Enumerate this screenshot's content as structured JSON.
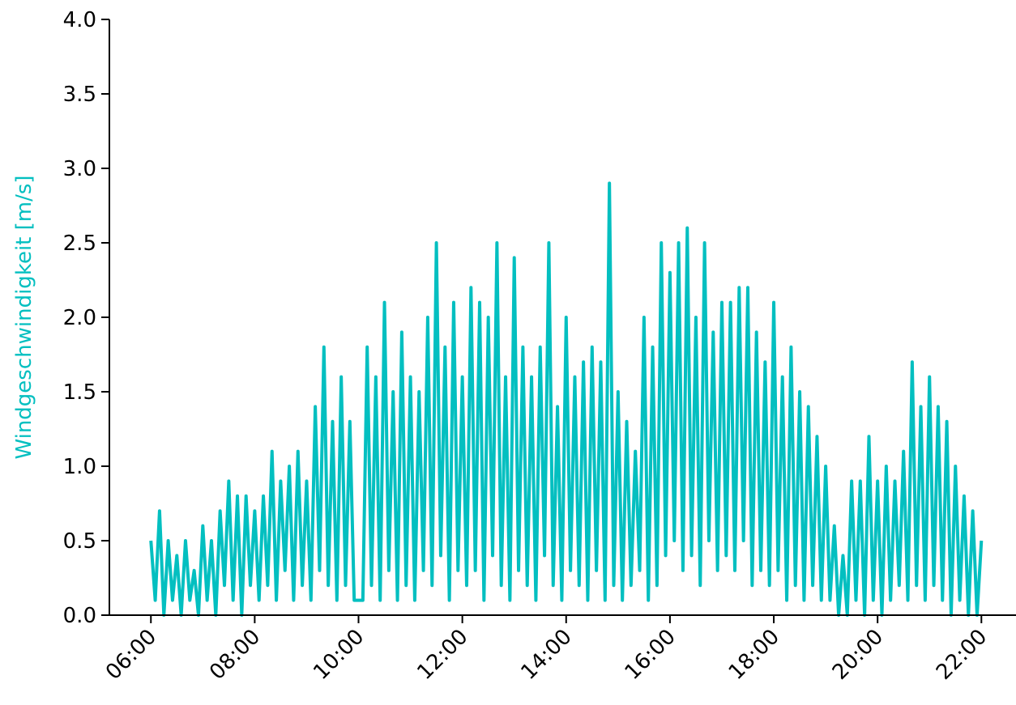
{
  "chart_data": {
    "type": "line",
    "y_label": "Windgeschwindigkeit [m/s]",
    "x": [
      "06:00",
      "06:05",
      "06:10",
      "06:15",
      "06:20",
      "06:25",
      "06:30",
      "06:35",
      "06:40",
      "06:45",
      "06:50",
      "06:55",
      "07:00",
      "07:05",
      "07:10",
      "07:15",
      "07:20",
      "07:25",
      "07:30",
      "07:35",
      "07:40",
      "07:45",
      "07:50",
      "07:55",
      "08:00",
      "08:05",
      "08:10",
      "08:15",
      "08:20",
      "08:25",
      "08:30",
      "08:35",
      "08:40",
      "08:45",
      "08:50",
      "08:55",
      "09:00",
      "09:05",
      "09:10",
      "09:15",
      "09:20",
      "09:25",
      "09:30",
      "09:35",
      "09:40",
      "09:45",
      "09:50",
      "09:55",
      "10:00",
      "10:05",
      "10:10",
      "10:15",
      "10:20",
      "10:25",
      "10:30",
      "10:35",
      "10:40",
      "10:45",
      "10:50",
      "10:55",
      "11:00",
      "11:05",
      "11:10",
      "11:15",
      "11:20",
      "11:25",
      "11:30",
      "11:35",
      "11:40",
      "11:45",
      "11:50",
      "11:55",
      "12:00",
      "12:05",
      "12:10",
      "12:15",
      "12:20",
      "12:25",
      "12:30",
      "12:35",
      "12:40",
      "12:45",
      "12:50",
      "12:55",
      "13:00",
      "13:05",
      "13:10",
      "13:15",
      "13:20",
      "13:25",
      "13:30",
      "13:35",
      "13:40",
      "13:45",
      "13:50",
      "13:55",
      "14:00",
      "14:05",
      "14:10",
      "14:15",
      "14:20",
      "14:25",
      "14:30",
      "14:35",
      "14:40",
      "14:45",
      "14:50",
      "14:55",
      "15:00",
      "15:05",
      "15:10",
      "15:15",
      "15:20",
      "15:25",
      "15:30",
      "15:35",
      "15:40",
      "15:45",
      "15:50",
      "15:55",
      "16:00",
      "16:05",
      "16:10",
      "16:15",
      "16:20",
      "16:25",
      "16:30",
      "16:35",
      "16:40",
      "16:45",
      "16:50",
      "16:55",
      "17:00",
      "17:05",
      "17:10",
      "17:15",
      "17:20",
      "17:25",
      "17:30",
      "17:35",
      "17:40",
      "17:45",
      "17:50",
      "17:55",
      "18:00",
      "18:05",
      "18:10",
      "18:15",
      "18:20",
      "18:25",
      "18:30",
      "18:35",
      "18:40",
      "18:45",
      "18:50",
      "18:55",
      "19:00",
      "19:05",
      "19:10",
      "19:15",
      "19:20",
      "19:25",
      "19:30",
      "19:35",
      "19:40",
      "19:45",
      "19:50",
      "19:55",
      "20:00",
      "20:05",
      "20:10",
      "20:15",
      "20:20",
      "20:25",
      "20:30",
      "20:35",
      "20:40",
      "20:45",
      "20:50",
      "20:55",
      "21:00",
      "21:05",
      "21:10",
      "21:15",
      "21:20",
      "21:25",
      "21:30",
      "21:35",
      "21:40",
      "21:45",
      "21:50",
      "21:55",
      "22:00"
    ],
    "series": [
      {
        "name": "Windgeschwindigkeit",
        "color": "#03bfc0",
        "values": [
          0.5,
          0.1,
          0.7,
          0.0,
          0.5,
          0.1,
          0.4,
          0.0,
          0.5,
          0.1,
          0.3,
          0.0,
          0.6,
          0.1,
          0.5,
          0.0,
          0.7,
          0.2,
          0.9,
          0.1,
          0.8,
          0.0,
          0.8,
          0.2,
          0.7,
          0.1,
          0.8,
          0.2,
          1.1,
          0.1,
          0.9,
          0.3,
          1.0,
          0.1,
          1.1,
          0.2,
          0.9,
          0.1,
          1.4,
          0.3,
          1.8,
          0.2,
          1.3,
          0.1,
          1.6,
          0.2,
          1.3,
          0.1,
          0.1,
          0.1,
          1.8,
          0.2,
          1.6,
          0.1,
          2.1,
          0.3,
          1.5,
          0.1,
          1.9,
          0.2,
          1.6,
          0.1,
          1.5,
          0.3,
          2.0,
          0.2,
          2.5,
          0.4,
          1.8,
          0.1,
          2.1,
          0.3,
          1.6,
          0.2,
          2.2,
          0.3,
          2.1,
          0.1,
          2.0,
          0.4,
          2.5,
          0.2,
          1.6,
          0.1,
          2.4,
          0.3,
          1.8,
          0.2,
          1.6,
          0.1,
          1.8,
          0.4,
          2.5,
          0.2,
          1.4,
          0.1,
          2.0,
          0.3,
          1.6,
          0.2,
          1.7,
          0.1,
          1.8,
          0.3,
          1.7,
          0.1,
          2.9,
          0.2,
          1.5,
          0.1,
          1.3,
          0.2,
          1.1,
          0.3,
          2.0,
          0.1,
          1.8,
          0.2,
          2.5,
          0.4,
          2.3,
          0.5,
          2.5,
          0.3,
          2.6,
          0.4,
          2.0,
          0.2,
          2.5,
          0.5,
          1.9,
          0.3,
          2.1,
          0.4,
          2.1,
          0.3,
          2.2,
          0.5,
          2.2,
          0.2,
          1.9,
          0.3,
          1.7,
          0.2,
          2.1,
          0.3,
          1.6,
          0.1,
          1.8,
          0.2,
          1.5,
          0.1,
          1.4,
          0.2,
          1.2,
          0.1,
          1.0,
          0.1,
          0.6,
          0.0,
          0.4,
          0.0,
          0.9,
          0.1,
          0.9,
          0.0,
          1.2,
          0.1,
          0.9,
          0.0,
          1.0,
          0.1,
          0.9,
          0.2,
          1.1,
          0.1,
          1.7,
          0.2,
          1.4,
          0.1,
          1.6,
          0.2,
          1.4,
          0.1,
          1.3,
          0.0,
          1.0,
          0.1,
          0.8,
          0.0,
          0.7,
          0.0,
          0.5
        ]
      }
    ],
    "xlim": [
      "05:12",
      "22:40"
    ],
    "xticks": [
      "06:00",
      "08:00",
      "10:00",
      "12:00",
      "14:00",
      "16:00",
      "18:00",
      "20:00",
      "22:00"
    ],
    "ylim": [
      0,
      4
    ],
    "yticks": [
      {
        "value": 0,
        "label": "0.0"
      },
      {
        "value": 0.5,
        "label": "0.5"
      },
      {
        "value": 1,
        "label": "1.0"
      },
      {
        "value": 1.5,
        "label": "1.5"
      },
      {
        "value": 2,
        "label": "2.0"
      },
      {
        "value": 2.5,
        "label": "2.5"
      },
      {
        "value": 3,
        "label": "3.0"
      },
      {
        "value": 3.5,
        "label": "3.5"
      },
      {
        "value": 4,
        "label": "4.0"
      }
    ],
    "y_label_color": "#03bfc0",
    "grid": false
  }
}
